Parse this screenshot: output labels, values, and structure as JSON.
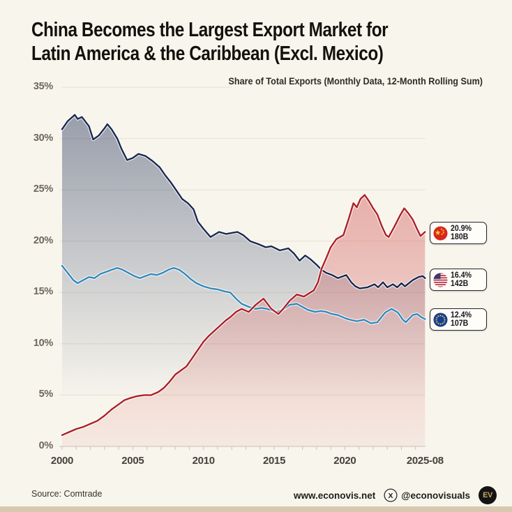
{
  "title": {
    "line1": "China Becomes the Largest Export Market for",
    "line2": "Latin America & the Caribbean (Excl. Mexico)"
  },
  "subtitle": "Share of Total Exports (Monthly Data, 12-Month Rolling Sum)",
  "footer": {
    "source": "Source: Comtrade",
    "website": "www.econovis.net",
    "social_handle": "@econovisuals",
    "logo_text": "EV"
  },
  "icons": {
    "china_flag": "china-flag-icon",
    "usa_flag": "usa-flag-icon",
    "eu_flag": "eu-flag-icon",
    "x_social": "x-social-icon",
    "ev_logo": "econovisuals-logo"
  },
  "colors": {
    "background": "#f8f5ed",
    "china_line": "#ab2025",
    "usa_line": "#1b2950",
    "eu_line": "#3488bb",
    "grid": "#e6e1d4",
    "axis": "#cbc4b4"
  },
  "chart_data": {
    "type": "line",
    "title": "China Becomes the Largest Export Market for Latin America & the Caribbean (Excl. Mexico)",
    "subtitle": "Share of Total Exports (Monthly Data, 12-Month Rolling Sum)",
    "grid": true,
    "legend_position": "right",
    "x_axis": {
      "ticks": [
        "2000",
        "2005",
        "2010",
        "2015",
        "2020",
        "2025-08"
      ],
      "tick_years": [
        2000,
        2005,
        2010,
        2015,
        2020,
        2025.67
      ],
      "range": [
        2000,
        2025.67
      ],
      "minor_tick_every_years": 1
    },
    "y_axis": {
      "ticks": [
        "0%",
        "5%",
        "10%",
        "15%",
        "20%",
        "25%",
        "30%",
        "35%"
      ],
      "tick_values": [
        0,
        5,
        10,
        15,
        20,
        25,
        30,
        35
      ],
      "range": [
        0,
        35
      ],
      "unit": "% share of total exports"
    },
    "series": [
      {
        "id": "china",
        "name": "China",
        "color": "#ab2025",
        "fill": true,
        "end_label": {
          "share": "20.9%",
          "value": "180B"
        },
        "points": [
          [
            2000.0,
            1.1
          ],
          [
            2000.5,
            1.4
          ],
          [
            2001.0,
            1.7
          ],
          [
            2001.5,
            1.9
          ],
          [
            2002.0,
            2.2
          ],
          [
            2002.5,
            2.5
          ],
          [
            2003.0,
            3.0
          ],
          [
            2003.5,
            3.6
          ],
          [
            2004.0,
            4.1
          ],
          [
            2004.4,
            4.5
          ],
          [
            2004.8,
            4.7
          ],
          [
            2005.3,
            4.9
          ],
          [
            2005.8,
            5.0
          ],
          [
            2006.3,
            5.0
          ],
          [
            2006.8,
            5.3
          ],
          [
            2007.2,
            5.7
          ],
          [
            2007.6,
            6.3
          ],
          [
            2008.0,
            7.0
          ],
          [
            2008.4,
            7.4
          ],
          [
            2008.8,
            7.8
          ],
          [
            2009.2,
            8.6
          ],
          [
            2009.6,
            9.4
          ],
          [
            2010.0,
            10.2
          ],
          [
            2010.4,
            10.8
          ],
          [
            2010.8,
            11.3
          ],
          [
            2011.2,
            11.8
          ],
          [
            2011.6,
            12.3
          ],
          [
            2011.9,
            12.6
          ],
          [
            2012.3,
            13.1
          ],
          [
            2012.7,
            13.4
          ],
          [
            2013.2,
            13.1
          ],
          [
            2013.7,
            13.8
          ],
          [
            2014.25,
            14.4
          ],
          [
            2014.8,
            13.4
          ],
          [
            2015.3,
            12.9
          ],
          [
            2015.7,
            13.5
          ],
          [
            2016.1,
            14.2
          ],
          [
            2016.6,
            14.8
          ],
          [
            2017.1,
            14.6
          ],
          [
            2017.8,
            15.2
          ],
          [
            2018.1,
            16.0
          ],
          [
            2018.35,
            17.3
          ],
          [
            2018.7,
            18.4
          ],
          [
            2019.0,
            19.4
          ],
          [
            2019.4,
            20.2
          ],
          [
            2019.9,
            20.6
          ],
          [
            2020.3,
            22.3
          ],
          [
            2020.6,
            23.7
          ],
          [
            2020.85,
            23.3
          ],
          [
            2021.1,
            24.1
          ],
          [
            2021.4,
            24.5
          ],
          [
            2021.7,
            23.9
          ],
          [
            2022.0,
            23.2
          ],
          [
            2022.3,
            22.6
          ],
          [
            2022.6,
            21.5
          ],
          [
            2022.9,
            20.6
          ],
          [
            2023.1,
            20.4
          ],
          [
            2023.5,
            21.4
          ],
          [
            2023.9,
            22.5
          ],
          [
            2024.2,
            23.2
          ],
          [
            2024.5,
            22.7
          ],
          [
            2024.8,
            22.1
          ],
          [
            2025.1,
            21.2
          ],
          [
            2025.35,
            20.5
          ],
          [
            2025.67,
            20.9
          ]
        ]
      },
      {
        "id": "usa",
        "name": "United States",
        "color": "#1b2950",
        "fill": true,
        "end_label": {
          "share": "16.4%",
          "value": "142B"
        },
        "points": [
          [
            2000.0,
            30.9
          ],
          [
            2000.4,
            31.7
          ],
          [
            2000.9,
            32.3
          ],
          [
            2001.1,
            31.9
          ],
          [
            2001.4,
            32.1
          ],
          [
            2001.9,
            31.2
          ],
          [
            2002.2,
            29.9
          ],
          [
            2002.6,
            30.3
          ],
          [
            2003.0,
            31.0
          ],
          [
            2003.2,
            31.4
          ],
          [
            2003.5,
            30.9
          ],
          [
            2003.9,
            30.0
          ],
          [
            2004.2,
            29.0
          ],
          [
            2004.6,
            27.9
          ],
          [
            2005.0,
            28.1
          ],
          [
            2005.4,
            28.5
          ],
          [
            2005.9,
            28.3
          ],
          [
            2006.4,
            27.8
          ],
          [
            2006.9,
            27.2
          ],
          [
            2007.3,
            26.4
          ],
          [
            2007.7,
            25.7
          ],
          [
            2008.1,
            24.9
          ],
          [
            2008.5,
            24.1
          ],
          [
            2008.9,
            23.7
          ],
          [
            2009.3,
            23.1
          ],
          [
            2009.6,
            21.9
          ],
          [
            2010.0,
            21.2
          ],
          [
            2010.5,
            20.4
          ],
          [
            2011.1,
            20.9
          ],
          [
            2011.6,
            20.7
          ],
          [
            2012.0,
            20.8
          ],
          [
            2012.4,
            20.9
          ],
          [
            2012.8,
            20.6
          ],
          [
            2013.3,
            20.0
          ],
          [
            2013.9,
            19.7
          ],
          [
            2014.4,
            19.4
          ],
          [
            2014.8,
            19.5
          ],
          [
            2015.4,
            19.1
          ],
          [
            2016.0,
            19.3
          ],
          [
            2016.4,
            18.8
          ],
          [
            2016.8,
            18.1
          ],
          [
            2017.2,
            18.6
          ],
          [
            2017.6,
            18.2
          ],
          [
            2018.0,
            17.7
          ],
          [
            2018.35,
            17.2
          ],
          [
            2018.7,
            16.9
          ],
          [
            2019.1,
            16.7
          ],
          [
            2019.5,
            16.4
          ],
          [
            2019.9,
            16.6
          ],
          [
            2020.1,
            16.7
          ],
          [
            2020.45,
            16.0
          ],
          [
            2020.75,
            15.6
          ],
          [
            2021.05,
            15.4
          ],
          [
            2021.6,
            15.5
          ],
          [
            2022.1,
            15.8
          ],
          [
            2022.35,
            15.5
          ],
          [
            2022.7,
            16.0
          ],
          [
            2023.0,
            15.5
          ],
          [
            2023.4,
            15.8
          ],
          [
            2023.7,
            15.5
          ],
          [
            2024.0,
            15.9
          ],
          [
            2024.25,
            15.6
          ],
          [
            2024.8,
            16.2
          ],
          [
            2025.2,
            16.5
          ],
          [
            2025.5,
            16.6
          ],
          [
            2025.67,
            16.4
          ]
        ]
      },
      {
        "id": "eu",
        "name": "European Union",
        "color": "#3488bb",
        "fill": false,
        "end_label": {
          "share": "12.4%",
          "value": "107B"
        },
        "points": [
          [
            2000.0,
            17.6
          ],
          [
            2000.4,
            16.9
          ],
          [
            2000.8,
            16.2
          ],
          [
            2001.1,
            15.9
          ],
          [
            2001.5,
            16.2
          ],
          [
            2001.9,
            16.5
          ],
          [
            2002.3,
            16.4
          ],
          [
            2002.7,
            16.8
          ],
          [
            2003.1,
            17.0
          ],
          [
            2003.5,
            17.2
          ],
          [
            2003.9,
            17.4
          ],
          [
            2004.3,
            17.2
          ],
          [
            2004.7,
            16.9
          ],
          [
            2005.1,
            16.6
          ],
          [
            2005.5,
            16.4
          ],
          [
            2005.9,
            16.6
          ],
          [
            2006.3,
            16.8
          ],
          [
            2006.7,
            16.7
          ],
          [
            2007.1,
            16.9
          ],
          [
            2007.5,
            17.2
          ],
          [
            2007.9,
            17.4
          ],
          [
            2008.3,
            17.2
          ],
          [
            2008.7,
            16.8
          ],
          [
            2009.1,
            16.3
          ],
          [
            2009.5,
            15.9
          ],
          [
            2010.0,
            15.6
          ],
          [
            2010.5,
            15.4
          ],
          [
            2011.0,
            15.3
          ],
          [
            2011.5,
            15.1
          ],
          [
            2011.9,
            15.0
          ],
          [
            2012.3,
            14.4
          ],
          [
            2012.7,
            13.9
          ],
          [
            2013.2,
            13.6
          ],
          [
            2013.7,
            13.4
          ],
          [
            2014.1,
            13.5
          ],
          [
            2014.5,
            13.4
          ],
          [
            2015.2,
            13.1
          ],
          [
            2015.7,
            13.4
          ],
          [
            2016.1,
            13.8
          ],
          [
            2016.6,
            13.9
          ],
          [
            2017.0,
            13.6
          ],
          [
            2017.4,
            13.3
          ],
          [
            2017.9,
            13.1
          ],
          [
            2018.3,
            13.2
          ],
          [
            2018.7,
            13.1
          ],
          [
            2019.1,
            12.9
          ],
          [
            2019.5,
            12.8
          ],
          [
            2020.1,
            12.45
          ],
          [
            2020.5,
            12.3
          ],
          [
            2020.85,
            12.2
          ],
          [
            2021.35,
            12.35
          ],
          [
            2021.85,
            12.0
          ],
          [
            2022.3,
            12.1
          ],
          [
            2022.85,
            13.05
          ],
          [
            2023.3,
            13.4
          ],
          [
            2023.75,
            13.05
          ],
          [
            2024.1,
            12.35
          ],
          [
            2024.3,
            12.1
          ],
          [
            2024.8,
            12.8
          ],
          [
            2025.1,
            12.9
          ],
          [
            2025.4,
            12.6
          ],
          [
            2025.67,
            12.4
          ]
        ]
      }
    ]
  }
}
